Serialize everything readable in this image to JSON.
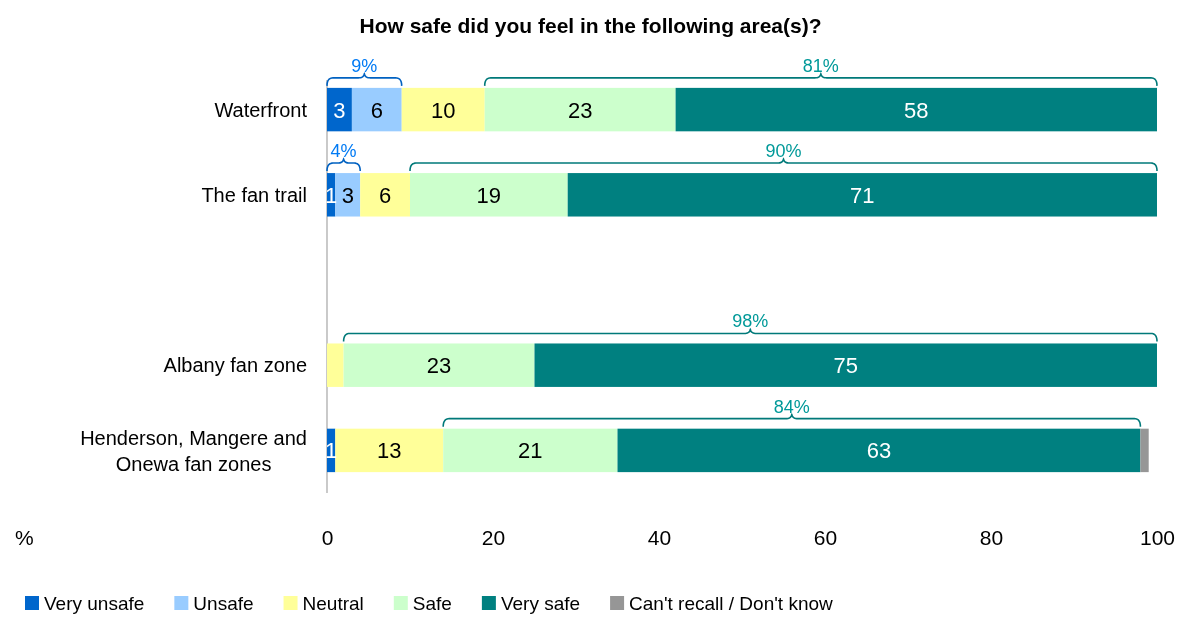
{
  "chart_data": {
    "type": "bar",
    "orientation": "horizontal",
    "stacked": true,
    "title": "How safe did you feel in the following area(s)?",
    "xlabel": "%",
    "categories": [
      "Waterfront",
      "The fan trail",
      null,
      "Albany fan zone",
      "Henderson, Mangere and Onewa fan zones"
    ],
    "series": [
      {
        "name": "Very unsafe",
        "color": "#0066cc",
        "values": [
          3,
          1,
          null,
          null,
          1
        ],
        "value_labels": [
          "3",
          "1",
          null,
          null,
          "1"
        ]
      },
      {
        "name": "Unsafe",
        "color": "#99ccff",
        "values": [
          6,
          3,
          null,
          null,
          null
        ],
        "value_labels": [
          "6",
          "3",
          null,
          null,
          null
        ]
      },
      {
        "name": "Neutral",
        "color": "#ffff99",
        "values": [
          10,
          6,
          null,
          2,
          13
        ],
        "value_labels": [
          "10",
          "6",
          null,
          null,
          "13"
        ]
      },
      {
        "name": "Safe",
        "color": "#ccffcc",
        "values": [
          23,
          19,
          null,
          23,
          21
        ],
        "value_labels": [
          "23",
          "19",
          null,
          "23",
          "21"
        ]
      },
      {
        "name": "Very safe",
        "color": "#008080",
        "values": [
          58,
          71,
          null,
          75,
          63
        ],
        "value_labels": [
          "58",
          "71",
          null,
          "75",
          "63"
        ]
      },
      {
        "name": "Can't recall / Don't know",
        "color": "#969696",
        "values": [
          null,
          null,
          null,
          null,
          1
        ],
        "value_labels": [
          null,
          null,
          null,
          null,
          null
        ]
      }
    ],
    "xlim": [
      0,
      100
    ],
    "xticks": [
      0,
      20,
      40,
      60,
      80,
      100
    ],
    "legend": "bottom",
    "annotations": [
      "9%",
      "81%",
      "4%",
      "90%",
      "98%",
      "84%"
    ]
  }
}
